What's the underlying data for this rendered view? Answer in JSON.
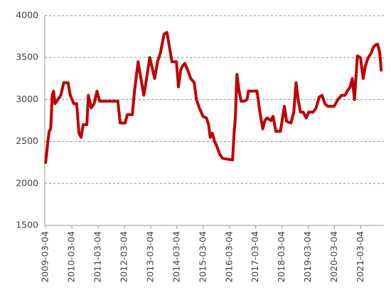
{
  "chart_data": {
    "type": "line",
    "color": "#c00000",
    "grid": true,
    "x": [
      "2009-03-04",
      "2009-04-04",
      "2009-04-22",
      "2009-05-13",
      "2009-06-04",
      "2009-06-22",
      "2009-07-13",
      "2009-08-22",
      "2009-10-01",
      "2009-11-10",
      "2010-01-10",
      "2010-02-10",
      "2010-03-31",
      "2010-05-10",
      "2010-06-10",
      "2010-07-10",
      "2010-08-07",
      "2010-09-28",
      "2010-10-19",
      "2010-11-28",
      "2011-01-07",
      "2011-02-16",
      "2011-03-25",
      "2011-07-04",
      "2011-12-04",
      "2012-01-04",
      "2012-03-13",
      "2012-04-13",
      "2012-06-22",
      "2012-07-22",
      "2012-09-10",
      "2012-10-10",
      "2012-11-28",
      "2012-12-28",
      "2013-02-19",
      "2013-03-19",
      "2013-04-28",
      "2013-06-07",
      "2013-07-16",
      "2013-09-07",
      "2013-10-16",
      "2013-11-25",
      "2013-12-25",
      "2014-02-25",
      "2014-03-25",
      "2014-04-25",
      "2014-05-22",
      "2014-06-22",
      "2014-08-01",
      "2014-09-13",
      "2014-10-31",
      "2014-11-30",
      "2015-01-10",
      "2015-03-01",
      "2015-04-19",
      "2015-05-19",
      "2015-06-10",
      "2015-07-10",
      "2015-08-10",
      "2015-09-07",
      "2015-10-19",
      "2015-11-28",
      "2016-01-28",
      "2016-04-16",
      "2016-05-07",
      "2016-05-25",
      "2016-06-16",
      "2016-07-16",
      "2016-08-13",
      "2016-09-25",
      "2016-11-04",
      "2016-11-22",
      "2017-03-22",
      "2017-05-01",
      "2017-06-10",
      "2017-07-10",
      "2017-08-10",
      "2017-10-01",
      "2017-10-31",
      "2017-12-10",
      "2018-02-10",
      "2018-03-07",
      "2018-04-07",
      "2018-05-07",
      "2018-07-07",
      "2018-08-16",
      "2018-09-16",
      "2018-10-16",
      "2018-11-16",
      "2018-12-25",
      "2019-02-04",
      "2019-03-13",
      "2019-05-13",
      "2019-06-22",
      "2019-08-04",
      "2019-09-13",
      "2019-10-22",
      "2019-12-01",
      "2020-03-01",
      "2020-04-19",
      "2020-06-10",
      "2020-07-28",
      "2020-08-28",
      "2020-10-07",
      "2020-11-07",
      "2020-12-07",
      "2021-01-16",
      "2021-02-28",
      "2021-04-07",
      "2021-05-07",
      "2021-06-16",
      "2021-07-25",
      "2021-08-25",
      "2021-09-25",
      "2021-10-25",
      "2021-11-25",
      "2021-12-13"
    ],
    "values": [
      2250,
      2500,
      2620,
      2650,
      3050,
      3100,
      2950,
      3000,
      3050,
      3200,
      3200,
      3050,
      2950,
      2950,
      2600,
      2550,
      2700,
      2700,
      3050,
      2900,
      2950,
      3100,
      2980,
      2980,
      2980,
      2720,
      2720,
      2820,
      2820,
      3100,
      3450,
      3300,
      3050,
      3200,
      3500,
      3400,
      3250,
      3450,
      3550,
      3780,
      3800,
      3600,
      3450,
      3450,
      3150,
      3350,
      3400,
      3430,
      3350,
      3250,
      3200,
      3000,
      2900,
      2800,
      2780,
      2700,
      2550,
      2600,
      2500,
      2450,
      2350,
      2300,
      2290,
      2280,
      2600,
      2780,
      3300,
      3100,
      2980,
      2980,
      3000,
      3100,
      3100,
      2850,
      2650,
      2750,
      2780,
      2750,
      2800,
      2620,
      2620,
      2750,
      2920,
      2740,
      2720,
      2850,
      3200,
      3000,
      2850,
      2850,
      2780,
      2850,
      2850,
      2900,
      3030,
      3050,
      2950,
      2920,
      2920,
      3000,
      3050,
      3050,
      3100,
      3150,
      3250,
      3000,
      3520,
      3500,
      3250,
      3400,
      3500,
      3550,
      3620,
      3650,
      3660,
      3550,
      3350
    ],
    "xlim": [
      "2009-02-20",
      "2022-01-20"
    ],
    "xticks": [
      "2009-03-04",
      "2010-03-04",
      "2011-03-04",
      "2012-03-04",
      "2013-03-04",
      "2014-03-04",
      "2015-03-04",
      "2016-03-04",
      "2017-03-04",
      "2018-03-04",
      "2019-03-04",
      "2020-03-04",
      "2021-03-04"
    ],
    "ylim": [
      1500,
      4000
    ],
    "yticks": [
      1500,
      2000,
      2500,
      3000,
      3500,
      4000
    ]
  }
}
